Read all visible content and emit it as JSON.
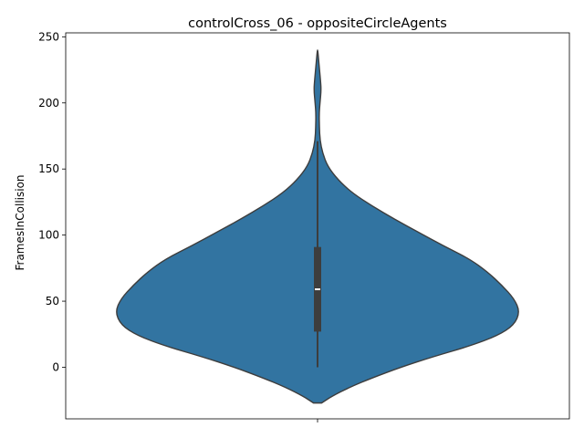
{
  "chart_data": {
    "type": "violin",
    "title": "controlCross_06 - oppositeCircleAgents",
    "xlabel": "",
    "ylabel": "FramesInCollision",
    "ylim": [
      -39,
      253
    ],
    "yticks": [
      0,
      50,
      100,
      150,
      200,
      250
    ],
    "xtick_labels": [
      ""
    ],
    "grid": false,
    "colors": {
      "violin_fill": "#3274a1",
      "outline": "#3d3d3d",
      "box": "#3d3d3d",
      "median": "#ffffff"
    },
    "density_profile": [
      {
        "y": -27,
        "w": 0.02
      },
      {
        "y": -22,
        "w": 0.07
      },
      {
        "y": -15,
        "w": 0.16
      },
      {
        "y": -8,
        "w": 0.27
      },
      {
        "y": 0,
        "w": 0.41
      },
      {
        "y": 8,
        "w": 0.57
      },
      {
        "y": 16,
        "w": 0.75
      },
      {
        "y": 24,
        "w": 0.89
      },
      {
        "y": 32,
        "w": 0.97
      },
      {
        "y": 42,
        "w": 0.999
      },
      {
        "y": 52,
        "w": 0.97
      },
      {
        "y": 62,
        "w": 0.91
      },
      {
        "y": 72,
        "w": 0.84
      },
      {
        "y": 82,
        "w": 0.75
      },
      {
        "y": 92,
        "w": 0.62
      },
      {
        "y": 102,
        "w": 0.5
      },
      {
        "y": 112,
        "w": 0.38
      },
      {
        "y": 122,
        "w": 0.27
      },
      {
        "y": 132,
        "w": 0.17
      },
      {
        "y": 142,
        "w": 0.1
      },
      {
        "y": 152,
        "w": 0.05
      },
      {
        "y": 162,
        "w": 0.025
      },
      {
        "y": 172,
        "w": 0.012
      },
      {
        "y": 182,
        "w": 0.009
      },
      {
        "y": 192,
        "w": 0.008
      },
      {
        "y": 200,
        "w": 0.012
      },
      {
        "y": 210,
        "w": 0.018
      },
      {
        "y": 218,
        "w": 0.014
      },
      {
        "y": 228,
        "w": 0.008
      },
      {
        "y": 240,
        "w": 0.001
      }
    ],
    "box": {
      "q1": 27,
      "median": 59,
      "q3": 91,
      "whisker_low": 0,
      "whisker_high": 171
    }
  }
}
